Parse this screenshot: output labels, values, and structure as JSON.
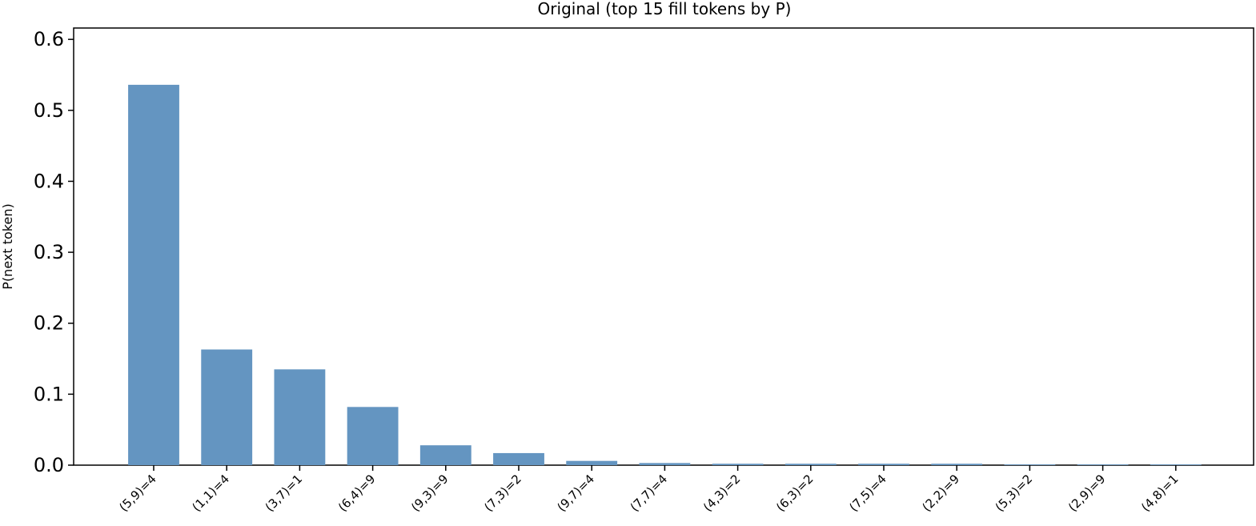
{
  "chart_data": {
    "type": "bar",
    "title": "Original  (top 15 fill tokens by P)",
    "y_label": "P(next token)",
    "categories": [
      "(5,9)=4",
      "(1,1)=4",
      "(3,7)=1",
      "(6,4)=9",
      "(9,3)=9",
      "(7,3)=2",
      "(9,7)=4",
      "(7,7)=4",
      "(4,3)=2",
      "(6,3)=2",
      "(7,5)=4",
      "(2,2)=9",
      "(5,3)=2",
      "(2,9)=9",
      "(4,8)=1"
    ],
    "values": [
      0.536,
      0.163,
      0.135,
      0.082,
      0.028,
      0.017,
      0.006,
      0.003,
      0.002,
      0.002,
      0.002,
      0.002,
      0.001,
      0.001,
      0.001
    ],
    "color": "#6495c1",
    "ylim": [
      0,
      0.616
    ],
    "yticks": [
      {
        "value": 0,
        "label": "0.0"
      },
      0.1,
      0.2,
      0.3,
      0.4,
      0.5,
      0.6
    ],
    "grid": false
  }
}
